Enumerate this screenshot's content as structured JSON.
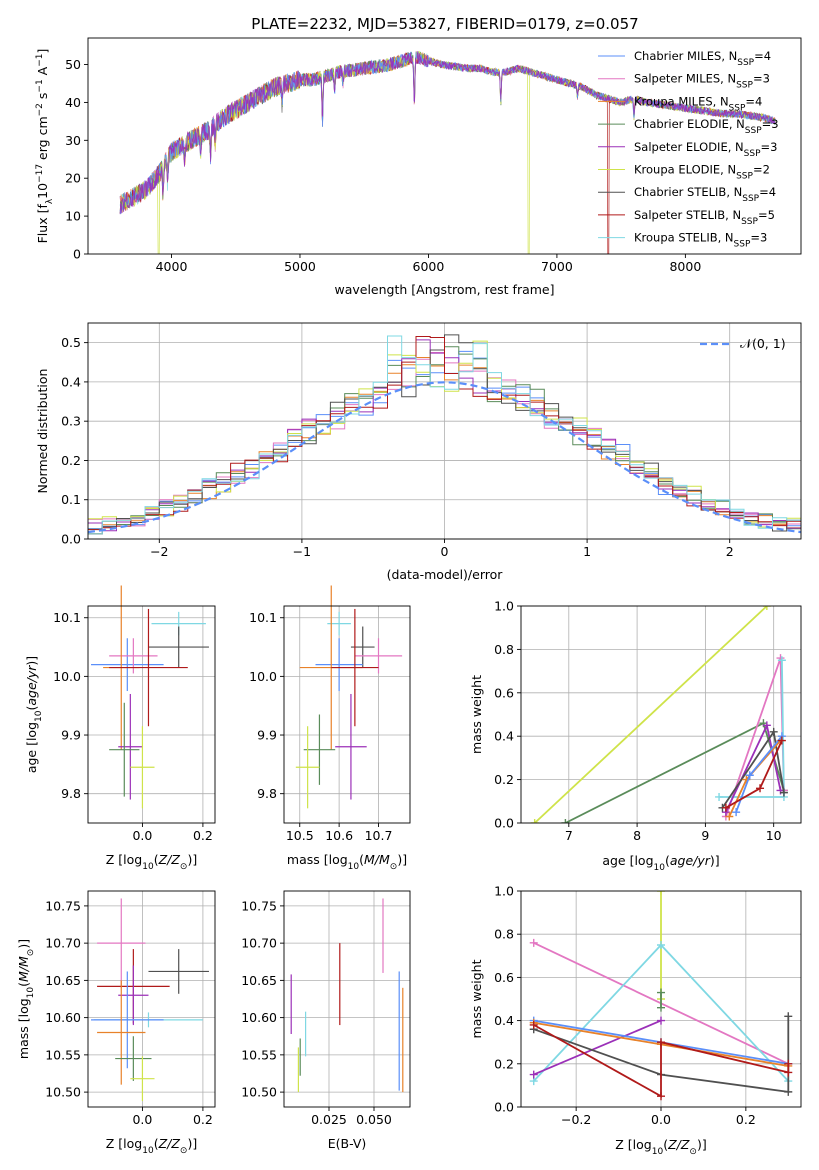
{
  "figure": {
    "title": "PLATE=2232, MJD=53827, FIBERID=0179, z=0.057"
  },
  "colors": {
    "Chabrier MILES": "#5b8ff9",
    "Salpeter MILES": "#e377c2",
    "Kroupa MILES": "#e8822a",
    "Chabrier ELODIE": "#5a8c5a",
    "Salpeter ELODIE": "#9b30b8",
    "Kroupa ELODIE": "#cfe34a",
    "Chabrier STELIB": "#505050",
    "Salpeter STELIB": "#b01a1a",
    "Kroupa STELIB": "#7fd8e3",
    "gaussian": "#5b8ff9"
  },
  "chart_data": [
    {
      "type": "line",
      "title": "PLATE=2232, MJD=53827, FIBERID=0179, z=0.057",
      "xlabel": "wavelength [Angstrom, rest frame]",
      "ylabel": "Flux [f_λ10^-17 erg cm^-2 s^-1 A^-1]",
      "xlim": [
        3350,
        8900
      ],
      "ylim": [
        0,
        57
      ],
      "xticks": [
        "4000",
        "5000",
        "6000",
        "7000",
        "8000"
      ],
      "yticks": [
        "0",
        "10",
        "20",
        "30",
        "40",
        "50"
      ],
      "grid": false,
      "legend_position": "top-right",
      "legend": [
        {
          "model": "Chabrier MILES",
          "n": "4"
        },
        {
          "model": "Salpeter MILES",
          "n": "3"
        },
        {
          "model": "Kroupa MILES",
          "n": "4"
        },
        {
          "model": "Chabrier ELODIE",
          "n": "3"
        },
        {
          "model": "Salpeter ELODIE",
          "n": "3"
        },
        {
          "model": "Kroupa ELODIE",
          "n": "2"
        },
        {
          "model": "Chabrier STELIB",
          "n": "4"
        },
        {
          "model": "Salpeter STELIB",
          "n": "5"
        },
        {
          "model": "Kroupa STELIB",
          "n": "3"
        }
      ],
      "continuum": [
        [
          3600,
          13
        ],
        [
          3700,
          15
        ],
        [
          3800,
          17
        ],
        [
          3900,
          21
        ],
        [
          4000,
          27
        ],
        [
          4100,
          29
        ],
        [
          4200,
          31
        ],
        [
          4300,
          33
        ],
        [
          4400,
          36
        ],
        [
          4500,
          38
        ],
        [
          4600,
          40
        ],
        [
          4700,
          42
        ],
        [
          4800,
          44
        ],
        [
          4900,
          45
        ],
        [
          5000,
          46
        ],
        [
          5100,
          46
        ],
        [
          5200,
          47
        ],
        [
          5300,
          48
        ],
        [
          5400,
          48.5
        ],
        [
          5500,
          49
        ],
        [
          5600,
          49.5
        ],
        [
          5700,
          50
        ],
        [
          5800,
          51
        ],
        [
          5900,
          52
        ],
        [
          6000,
          51
        ],
        [
          6100,
          50
        ],
        [
          6200,
          49.5
        ],
        [
          6300,
          49
        ],
        [
          6400,
          49
        ],
        [
          6500,
          48
        ],
        [
          6600,
          48
        ],
        [
          6700,
          49
        ],
        [
          6800,
          48
        ],
        [
          6900,
          47
        ],
        [
          7000,
          46
        ],
        [
          7100,
          45
        ],
        [
          7200,
          44
        ],
        [
          7300,
          42
        ],
        [
          7400,
          41
        ],
        [
          7500,
          40
        ],
        [
          7600,
          41
        ],
        [
          7700,
          40
        ],
        [
          7800,
          39.5
        ],
        [
          7900,
          39
        ],
        [
          8000,
          38.5
        ],
        [
          8100,
          38
        ],
        [
          8200,
          37.5
        ],
        [
          8300,
          37
        ],
        [
          8400,
          37
        ],
        [
          8500,
          36.5
        ],
        [
          8600,
          36
        ],
        [
          8700,
          35
        ]
      ],
      "absorption_lines": [
        [
          3934,
          7
        ],
        [
          3969,
          6
        ],
        [
          4102,
          4
        ],
        [
          4227,
          4
        ],
        [
          4304,
          7
        ],
        [
          4340,
          5
        ],
        [
          4861,
          5
        ],
        [
          5175,
          12
        ],
        [
          5270,
          4
        ],
        [
          5335,
          3
        ],
        [
          5890,
          12
        ],
        [
          6563,
          8
        ],
        [
          7160,
          3
        ],
        [
          7600,
          5
        ]
      ],
      "drops_to_zero": [
        [
          3900,
          "Kroupa ELODIE"
        ],
        [
          6780,
          "Kroupa ELODIE"
        ],
        [
          7400,
          "Salpeter STELIB"
        ]
      ]
    },
    {
      "type": "bar",
      "xlabel": "(data-model)/error",
      "ylabel": "Normed distribution",
      "xlim": [
        -2.5,
        2.5
      ],
      "ylim": [
        0,
        0.55
      ],
      "xticks": [
        "−2",
        "−1",
        "0",
        "1",
        "2"
      ],
      "yticks": [
        "0.0",
        "0.1",
        "0.2",
        "0.3",
        "0.4",
        "0.5"
      ],
      "grid": true,
      "legend_position": "top-right",
      "reference_curve": {
        "label": "𝒩(0, 1)",
        "mean": 0,
        "sigma": 1
      },
      "bin_width": 0.1,
      "bin_start": -2.5,
      "series": [
        {
          "model": "Chabrier MILES",
          "values": [
            0.02,
            0.025,
            0.03,
            0.035,
            0.04,
            0.05,
            0.055,
            0.06,
            0.07,
            0.075,
            0.085,
            0.095,
            0.11,
            0.12,
            0.135,
            0.15,
            0.16,
            0.18,
            0.2,
            0.22,
            0.24,
            0.26,
            0.28,
            0.3,
            0.32,
            0.34,
            0.36,
            0.38,
            0.4,
            0.42,
            0.46,
            0.48,
            0.44,
            0.42,
            0.4,
            0.38,
            0.36,
            0.34,
            0.32,
            0.3,
            0.28,
            0.26,
            0.24,
            0.22,
            0.2,
            0.18,
            0.16,
            0.15,
            0.13,
            0.12,
            0.11
          ]
        }
      ]
    },
    {
      "type": "scatter",
      "xlabel": "Z [log10(Z/Z⊙)]",
      "ylabel": "age  [log10(age/yr)]",
      "xlim": [
        -0.18,
        0.24
      ],
      "ylim": [
        9.75,
        10.12
      ],
      "xticks": [
        "0.0",
        "0.2"
      ],
      "yticks": [
        "9.8",
        "9.9",
        "10.0",
        "10.1"
      ],
      "grid": true,
      "points": [
        {
          "model": "Kroupa STELIB",
          "x": 0.12,
          "y": 10.09,
          "xerr": 0.09,
          "yerr": 0.02
        },
        {
          "model": "Chabrier STELIB",
          "x": 0.12,
          "y": 10.05,
          "xerr": 0.1,
          "yerr": 0.035
        },
        {
          "model": "Chabrier MILES",
          "x": -0.05,
          "y": 10.02,
          "xerr": 0.12,
          "yerr": 0.045
        },
        {
          "model": "Salpeter MILES",
          "x": -0.03,
          "y": 10.035,
          "xerr": 0.08,
          "yerr": 0.03
        },
        {
          "model": "Kroupa MILES",
          "x": -0.07,
          "y": 10.015,
          "xerr": 0.06,
          "yerr": 0.14
        },
        {
          "model": "Salpeter STELIB",
          "x": 0.02,
          "y": 10.015,
          "xerr": 0.13,
          "yerr": 0.1
        },
        {
          "model": "Salpeter ELODIE",
          "x": -0.04,
          "y": 9.88,
          "xerr": 0.04,
          "yerr": 0.09
        },
        {
          "model": "Chabrier ELODIE",
          "x": -0.06,
          "y": 9.875,
          "xerr": 0.05,
          "yerr": 0.08
        },
        {
          "model": "Kroupa ELODIE",
          "x": 0.0,
          "y": 9.845,
          "xerr": 0.04,
          "yerr": 0.07
        }
      ]
    },
    {
      "type": "scatter",
      "xlabel": "mass [log10(M/M⊙)]",
      "ylabel": "",
      "xlim": [
        10.46,
        10.78
      ],
      "ylim": [
        9.75,
        10.12
      ],
      "xticks": [
        "10.5",
        "10.6",
        "10.7"
      ],
      "yticks": [
        "9.8",
        "9.9",
        "10.0",
        "10.1"
      ],
      "grid": true,
      "points": [
        {
          "model": "Kroupa STELIB",
          "x": 10.6,
          "y": 10.09,
          "xerr": 0.03,
          "yerr": 0.02
        },
        {
          "model": "Chabrier STELIB",
          "x": 10.66,
          "y": 10.05,
          "xerr": 0.03,
          "yerr": 0.035
        },
        {
          "model": "Salpeter MILES",
          "x": 10.7,
          "y": 10.035,
          "xerr": 0.06,
          "yerr": 0.03
        },
        {
          "model": "Chabrier MILES",
          "x": 10.6,
          "y": 10.02,
          "xerr": 0.06,
          "yerr": 0.045
        },
        {
          "model": "Kroupa MILES",
          "x": 10.58,
          "y": 10.015,
          "xerr": 0.08,
          "yerr": 0.14
        },
        {
          "model": "Salpeter STELIB",
          "x": 10.64,
          "y": 10.015,
          "xerr": 0.06,
          "yerr": 0.1
        },
        {
          "model": "Salpeter ELODIE",
          "x": 10.63,
          "y": 9.88,
          "xerr": 0.04,
          "yerr": 0.09
        },
        {
          "model": "Chabrier ELODIE",
          "x": 10.55,
          "y": 9.875,
          "xerr": 0.04,
          "yerr": 0.06
        },
        {
          "model": "Kroupa ELODIE",
          "x": 10.52,
          "y": 9.845,
          "xerr": 0.03,
          "yerr": 0.07
        }
      ]
    },
    {
      "type": "line",
      "xlabel": "age  [log10(age/yr)]",
      "ylabel": "mass weight",
      "xlim": [
        6.3,
        10.4
      ],
      "ylim": [
        0,
        1
      ],
      "xticks": [
        "7",
        "8",
        "9",
        "10"
      ],
      "yticks": [
        "0.0",
        "0.2",
        "0.4",
        "0.6",
        "0.8",
        "1.0"
      ],
      "grid": true,
      "series": [
        {
          "model": "Kroupa ELODIE",
          "x": [
            6.5,
            9.9
          ],
          "y": [
            0.0,
            1.0
          ]
        },
        {
          "model": "Chabrier ELODIE",
          "x": [
            6.95,
            9.85,
            10.15
          ],
          "y": [
            0.0,
            0.46,
            0.15
          ]
        },
        {
          "model": "Salpeter MILES",
          "x": [
            9.3,
            10.1,
            10.15
          ],
          "y": [
            0.03,
            0.76,
            0.15
          ]
        },
        {
          "model": "Kroupa STELIB",
          "x": [
            9.2,
            10.15,
            10.12
          ],
          "y": [
            0.12,
            0.12,
            0.75
          ]
        },
        {
          "model": "Salpeter ELODIE",
          "x": [
            9.3,
            9.9,
            10.1
          ],
          "y": [
            0.05,
            0.45,
            0.15
          ]
        },
        {
          "model": "Chabrier STELIB",
          "x": [
            9.25,
            10.0,
            10.15
          ],
          "y": [
            0.07,
            0.42,
            0.14
          ]
        },
        {
          "model": "Kroupa MILES",
          "x": [
            9.35,
            9.6,
            10.1
          ],
          "y": [
            0.03,
            0.2,
            0.38
          ]
        },
        {
          "model": "Chabrier MILES",
          "x": [
            9.45,
            9.65,
            10.12
          ],
          "y": [
            0.05,
            0.22,
            0.4
          ]
        },
        {
          "model": "Salpeter STELIB",
          "x": [
            9.3,
            9.8,
            10.12
          ],
          "y": [
            0.07,
            0.16,
            0.38
          ]
        }
      ]
    },
    {
      "type": "scatter",
      "xlabel": "Z [log10(Z/Z⊙)]",
      "ylabel": "mass [log10(M/M⊙)]",
      "xlim": [
        -0.18,
        0.24
      ],
      "ylim": [
        10.48,
        10.77
      ],
      "xticks": [
        "0.0",
        "0.2"
      ],
      "yticks": [
        "10.50",
        "10.55",
        "10.60",
        "10.65",
        "10.70",
        "10.75"
      ],
      "grid": true,
      "points": [
        {
          "model": "Salpeter MILES",
          "x": -0.07,
          "y": 10.7,
          "xerr": 0.08,
          "yerr": 0.06
        },
        {
          "model": "Chabrier STELIB",
          "x": 0.12,
          "y": 10.662,
          "xerr": 0.1,
          "yerr": 0.03
        },
        {
          "model": "Salpeter STELIB",
          "x": -0.03,
          "y": 10.642,
          "xerr": 0.12,
          "yerr": 0.05
        },
        {
          "model": "Salpeter ELODIE",
          "x": -0.03,
          "y": 10.63,
          "xerr": 0.05,
          "yerr": 0.04
        },
        {
          "model": "Kroupa STELIB",
          "x": 0.02,
          "y": 10.597,
          "xerr": 0.18,
          "yerr": 0.01
        },
        {
          "model": "Chabrier MILES",
          "x": -0.05,
          "y": 10.597,
          "xerr": 0.12,
          "yerr": 0.065
        },
        {
          "model": "Kroupa MILES",
          "x": -0.07,
          "y": 10.58,
          "xerr": 0.08,
          "yerr": 0.07
        },
        {
          "model": "Chabrier ELODIE",
          "x": -0.03,
          "y": 10.545,
          "xerr": 0.06,
          "yerr": 0.03
        },
        {
          "model": "Kroupa ELODIE",
          "x": 0.0,
          "y": 10.518,
          "xerr": 0.04,
          "yerr": 0.03
        }
      ]
    },
    {
      "type": "scatter",
      "xlabel": "E(B-V)",
      "ylabel": "",
      "xlim": [
        0.0,
        0.07
      ],
      "ylim": [
        10.48,
        10.77
      ],
      "xticks": [
        "0.025",
        "0.050"
      ],
      "yticks": [
        "10.50",
        "10.55",
        "10.60",
        "10.65",
        "10.70",
        "10.75"
      ],
      "grid": true,
      "points": [
        {
          "model": "Salpeter MILES",
          "x": 0.055,
          "y": 10.71,
          "xerr": 0,
          "yerr": 0.05
        },
        {
          "model": "Salpeter ELODIE",
          "x": 0.004,
          "y": 10.618,
          "xerr": 0,
          "yerr": 0.04
        },
        {
          "model": "Salpeter STELIB",
          "x": 0.031,
          "y": 10.645,
          "xerr": 0,
          "yerr": 0.055
        },
        {
          "model": "Kroupa STELIB",
          "x": 0.012,
          "y": 10.578,
          "xerr": 0,
          "yerr": 0.03
        },
        {
          "model": "Chabrier ELODIE",
          "x": 0.009,
          "y": 10.547,
          "xerr": 0,
          "yerr": 0.025
        },
        {
          "model": "Kroupa ELODIE",
          "x": 0.008,
          "y": 10.53,
          "xerr": 0,
          "yerr": 0.03
        },
        {
          "model": "Chabrier MILES",
          "x": 0.064,
          "y": 10.582,
          "xerr": 0,
          "yerr": 0.08
        },
        {
          "model": "Kroupa MILES",
          "x": 0.066,
          "y": 10.57,
          "xerr": 0,
          "yerr": 0.07
        }
      ]
    },
    {
      "type": "line",
      "xlabel": "Z [log10(Z/Z⊙)]",
      "ylabel": "mass weight",
      "xlim": [
        -0.33,
        0.33
      ],
      "ylim": [
        0,
        1
      ],
      "xticks": [
        "−0.2",
        "0.0",
        "0.2"
      ],
      "yticks": [
        "0.0",
        "0.2",
        "0.4",
        "0.6",
        "0.8",
        "1.0"
      ],
      "grid": true,
      "series": [
        {
          "model": "Kroupa ELODIE",
          "x": [
            0.0,
            0.0
          ],
          "y": [
            0.5,
            1.0
          ]
        },
        {
          "model": "Salpeter MILES",
          "x": [
            -0.3,
            0.3
          ],
          "y": [
            0.76,
            0.2
          ]
        },
        {
          "model": "Kroupa STELIB",
          "x": [
            -0.3,
            0.0,
            0.3
          ],
          "y": [
            0.12,
            0.75,
            0.12
          ]
        },
        {
          "model": "Salpeter ELODIE",
          "x": [
            -0.3,
            0.0
          ],
          "y": [
            0.15,
            0.4
          ]
        },
        {
          "model": "Chabrier MILES",
          "x": [
            -0.3,
            0.0,
            0.3
          ],
          "y": [
            0.4,
            0.3,
            0.2
          ]
        },
        {
          "model": "Kroupa MILES",
          "x": [
            -0.3,
            0.0,
            0.3
          ],
          "y": [
            0.39,
            0.29,
            0.19
          ]
        },
        {
          "model": "Chabrier STELIB",
          "x": [
            -0.3,
            0.0,
            0.3,
            0.3
          ],
          "y": [
            0.36,
            0.15,
            0.07,
            0.42
          ]
        },
        {
          "model": "Salpeter STELIB",
          "x": [
            -0.3,
            0.0,
            0.0,
            0.3,
            0.3
          ],
          "y": [
            0.38,
            0.05,
            0.3,
            0.16,
            0.2
          ]
        },
        {
          "model": "Chabrier ELODIE",
          "x": [
            0.0,
            0.0
          ],
          "y": [
            0.53,
            0.46
          ]
        }
      ]
    }
  ]
}
